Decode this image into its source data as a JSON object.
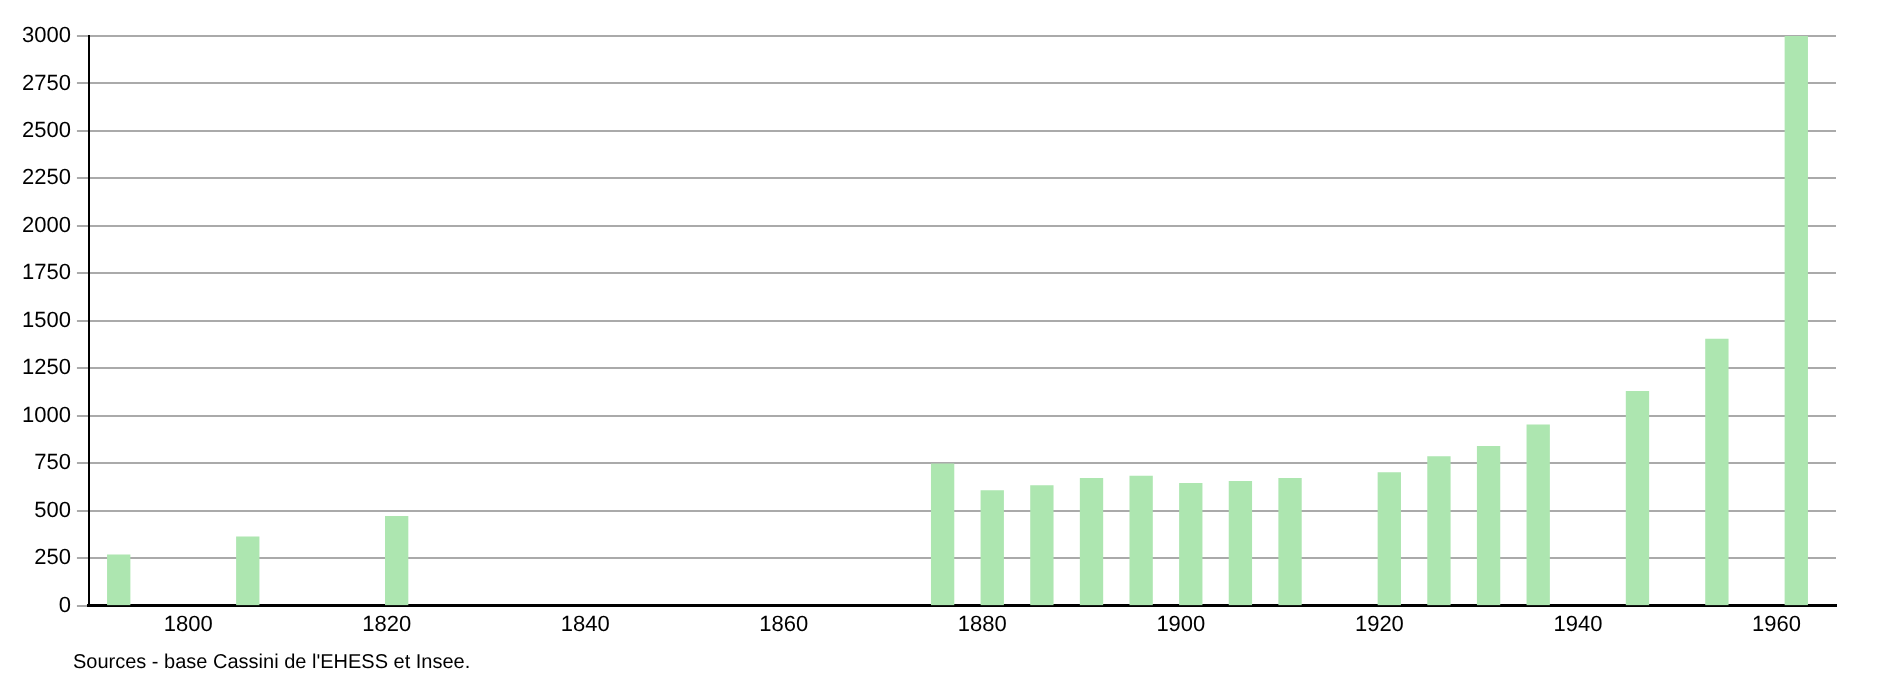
{
  "chart_data": {
    "type": "bar",
    "x": [
      1793,
      1806,
      1821,
      1876,
      1881,
      1886,
      1891,
      1896,
      1901,
      1906,
      1911,
      1921,
      1926,
      1931,
      1936,
      1946,
      1954,
      1962
    ],
    "values": [
      266,
      361,
      468,
      745,
      604,
      630,
      669,
      680,
      642,
      653,
      669,
      699,
      783,
      837,
      951,
      1127,
      1402,
      3000
    ],
    "color": "#ade6b0",
    "xlim": [
      1790,
      1966
    ],
    "xticks": [
      1800,
      1820,
      1840,
      1860,
      1880,
      1900,
      1920,
      1940,
      1960
    ],
    "ylim": [
      0,
      3000
    ],
    "yticks": [
      0,
      250,
      500,
      750,
      1000,
      1250,
      1500,
      1750,
      2000,
      2250,
      2500,
      2750,
      3000
    ],
    "grid": "y",
    "legend": false,
    "annotations": [
      "Sources - base Cassini de l'EHESS et Insee."
    ]
  }
}
